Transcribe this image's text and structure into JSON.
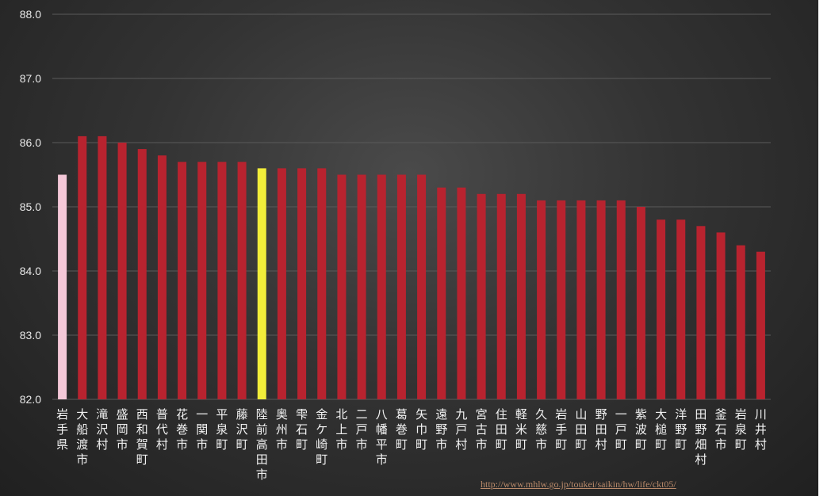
{
  "chart_data": {
    "type": "bar",
    "ylim": [
      82.0,
      88.0
    ],
    "yticks": [
      "82.0",
      "83.0",
      "84.0",
      "85.0",
      "86.0",
      "87.0",
      "88.0"
    ],
    "grid": true,
    "categories": [
      "岩手県",
      "大船渡市",
      "滝沢村",
      "盛岡市",
      "西和賀町",
      "普代村",
      "花巻市",
      "一関市",
      "平泉町",
      "藤沢町",
      "陸前高田市",
      "奥州市",
      "雫石町",
      "金ケ崎町",
      "北上市",
      "二戸市",
      "八幡平市",
      "葛巻町",
      "矢巾町",
      "遠野市",
      "九戸村",
      "宮古市",
      "住田町",
      "軽米町",
      "久慈市",
      "岩手町",
      "山田町",
      "野田村",
      "一戸町",
      "紫波町",
      "大槌町",
      "洋野町",
      "田野畑村",
      "釜石市",
      "岩泉町",
      "川井村"
    ],
    "values": [
      85.5,
      86.1,
      86.1,
      86.0,
      85.9,
      85.8,
      85.7,
      85.7,
      85.7,
      85.7,
      85.6,
      85.6,
      85.6,
      85.6,
      85.5,
      85.5,
      85.5,
      85.5,
      85.5,
      85.3,
      85.3,
      85.2,
      85.2,
      85.2,
      85.1,
      85.1,
      85.1,
      85.1,
      85.1,
      85.0,
      84.8,
      84.8,
      84.7,
      84.6,
      84.4,
      84.3
    ],
    "colors": {
      "default": "#b8232f",
      "prefecture": "#f4c8d8",
      "highlight": "#f2ee3a"
    },
    "prefecture_index": 0,
    "highlight_index": 10
  },
  "source": {
    "url": "http://www.mhlw.go.jp/toukei/saikin/hw/life/ckt05/"
  }
}
